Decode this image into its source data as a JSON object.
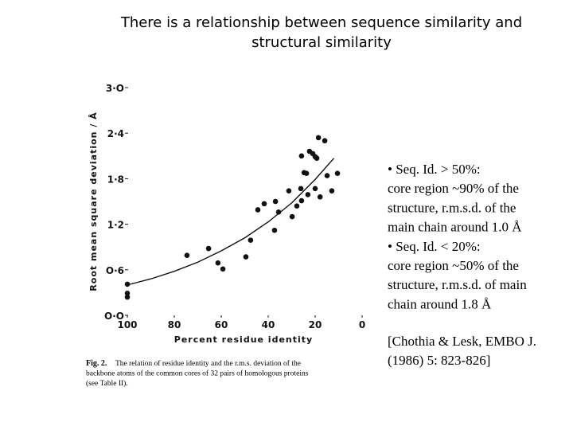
{
  "title_lines": [
    "There is a relationship between sequence similarity and",
    "structural similarity"
  ],
  "bullet_lines": [
    "• Seq. Id. > 50%:",
    "core region ~90% of the",
    "structure, r.m.s.d. of the",
    "main chain around 1.0 Å",
    "• Seq. Id. < 20%:",
    "core region ~50% of the",
    "structure, r.m.s.d. of main",
    "chain around 1.8 Å"
  ],
  "reference_lines": [
    "[Chothia & Lesk, EMBO J.",
    "(1986) 5: 823-826]"
  ],
  "figure_caption": {
    "label": "Fig. 2.",
    "lines": [
      "The relation of residue identity and the r.m.s. deviation of the",
      "backbone atoms of the common cores of 32 pairs of homologous proteins",
      "(see Table II)."
    ]
  },
  "chart_data": {
    "type": "scatter",
    "x_label": "Percent residue identity",
    "y_label": "Root mean square deviation / Å",
    "x": [
      100,
      100,
      100,
      74.6,
      65.4,
      61.4,
      59.3,
      49.5,
      47.5,
      44.4,
      41.7,
      37.3,
      36.9,
      35.6,
      31.2,
      29.8,
      27.8,
      26.1,
      25.8,
      25.8,
      24.7,
      23.7,
      23.1,
      22.4,
      21.0,
      20.0,
      20.0,
      19.3,
      18.6,
      17.9,
      15.9,
      14.9,
      12.9,
      10.5
    ],
    "series": [
      {
        "color": "#111111",
        "values": [
          0.41,
          0.29,
          0.24,
          0.79,
          0.88,
          0.69,
          0.61,
          0.77,
          0.99,
          1.39,
          1.47,
          1.12,
          1.5,
          1.36,
          1.64,
          1.3,
          1.44,
          1.67,
          1.51,
          2.1,
          1.88,
          1.87,
          1.59,
          2.16,
          2.13,
          1.67,
          2.09,
          2.07,
          2.34,
          1.56,
          2.3,
          1.84,
          1.64,
          1.87
        ]
      }
    ],
    "fit": {
      "x": [
        100,
        90,
        80,
        70,
        60,
        50,
        40,
        30,
        20,
        12
      ],
      "values": [
        0.4,
        0.48,
        0.58,
        0.7,
        0.85,
        1.02,
        1.23,
        1.48,
        1.79,
        2.07
      ],
      "color": "#111111"
    },
    "xlim": [
      100,
      0
    ],
    "ylim": [
      0,
      3
    ],
    "xticks": [
      100,
      80,
      60,
      40,
      20,
      0
    ],
    "yticks": [
      {
        "value": 0,
        "label": "O·O"
      },
      {
        "value": 0.6,
        "label": "O·6"
      },
      {
        "value": 1.2,
        "label": "1·2"
      },
      {
        "value": 1.8,
        "label": "1·8"
      },
      {
        "value": 2.4,
        "label": "2·4"
      },
      {
        "value": 3.0,
        "label": "3·O"
      }
    ]
  }
}
